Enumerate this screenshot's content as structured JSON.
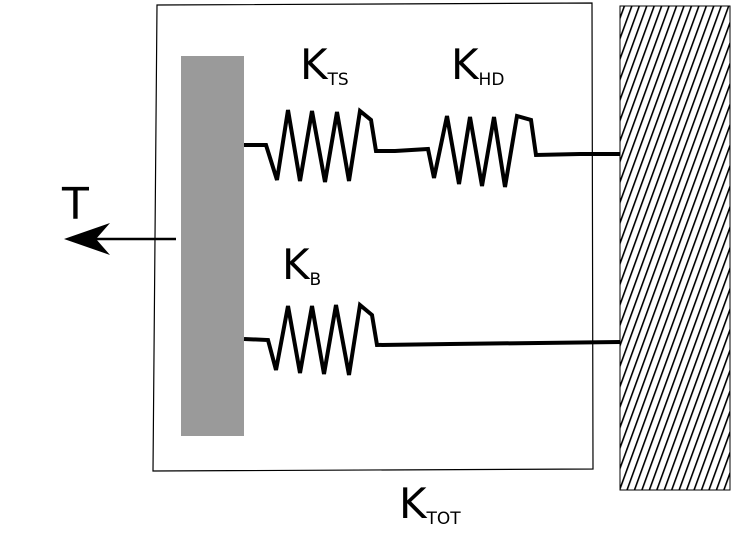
{
  "labels": {
    "k_ts": {
      "main": "K",
      "sub": "TS"
    },
    "k_hd": {
      "main": "K",
      "sub": "HD"
    },
    "k_b": {
      "main": "K",
      "sub": "B"
    },
    "k_tot": {
      "main": "K",
      "sub": "TOT"
    },
    "t": "T"
  },
  "colors": {
    "plate": "#9a9a9a",
    "ink": "#000000",
    "wall_hatch": "#000000",
    "background": "#ffffff"
  }
}
